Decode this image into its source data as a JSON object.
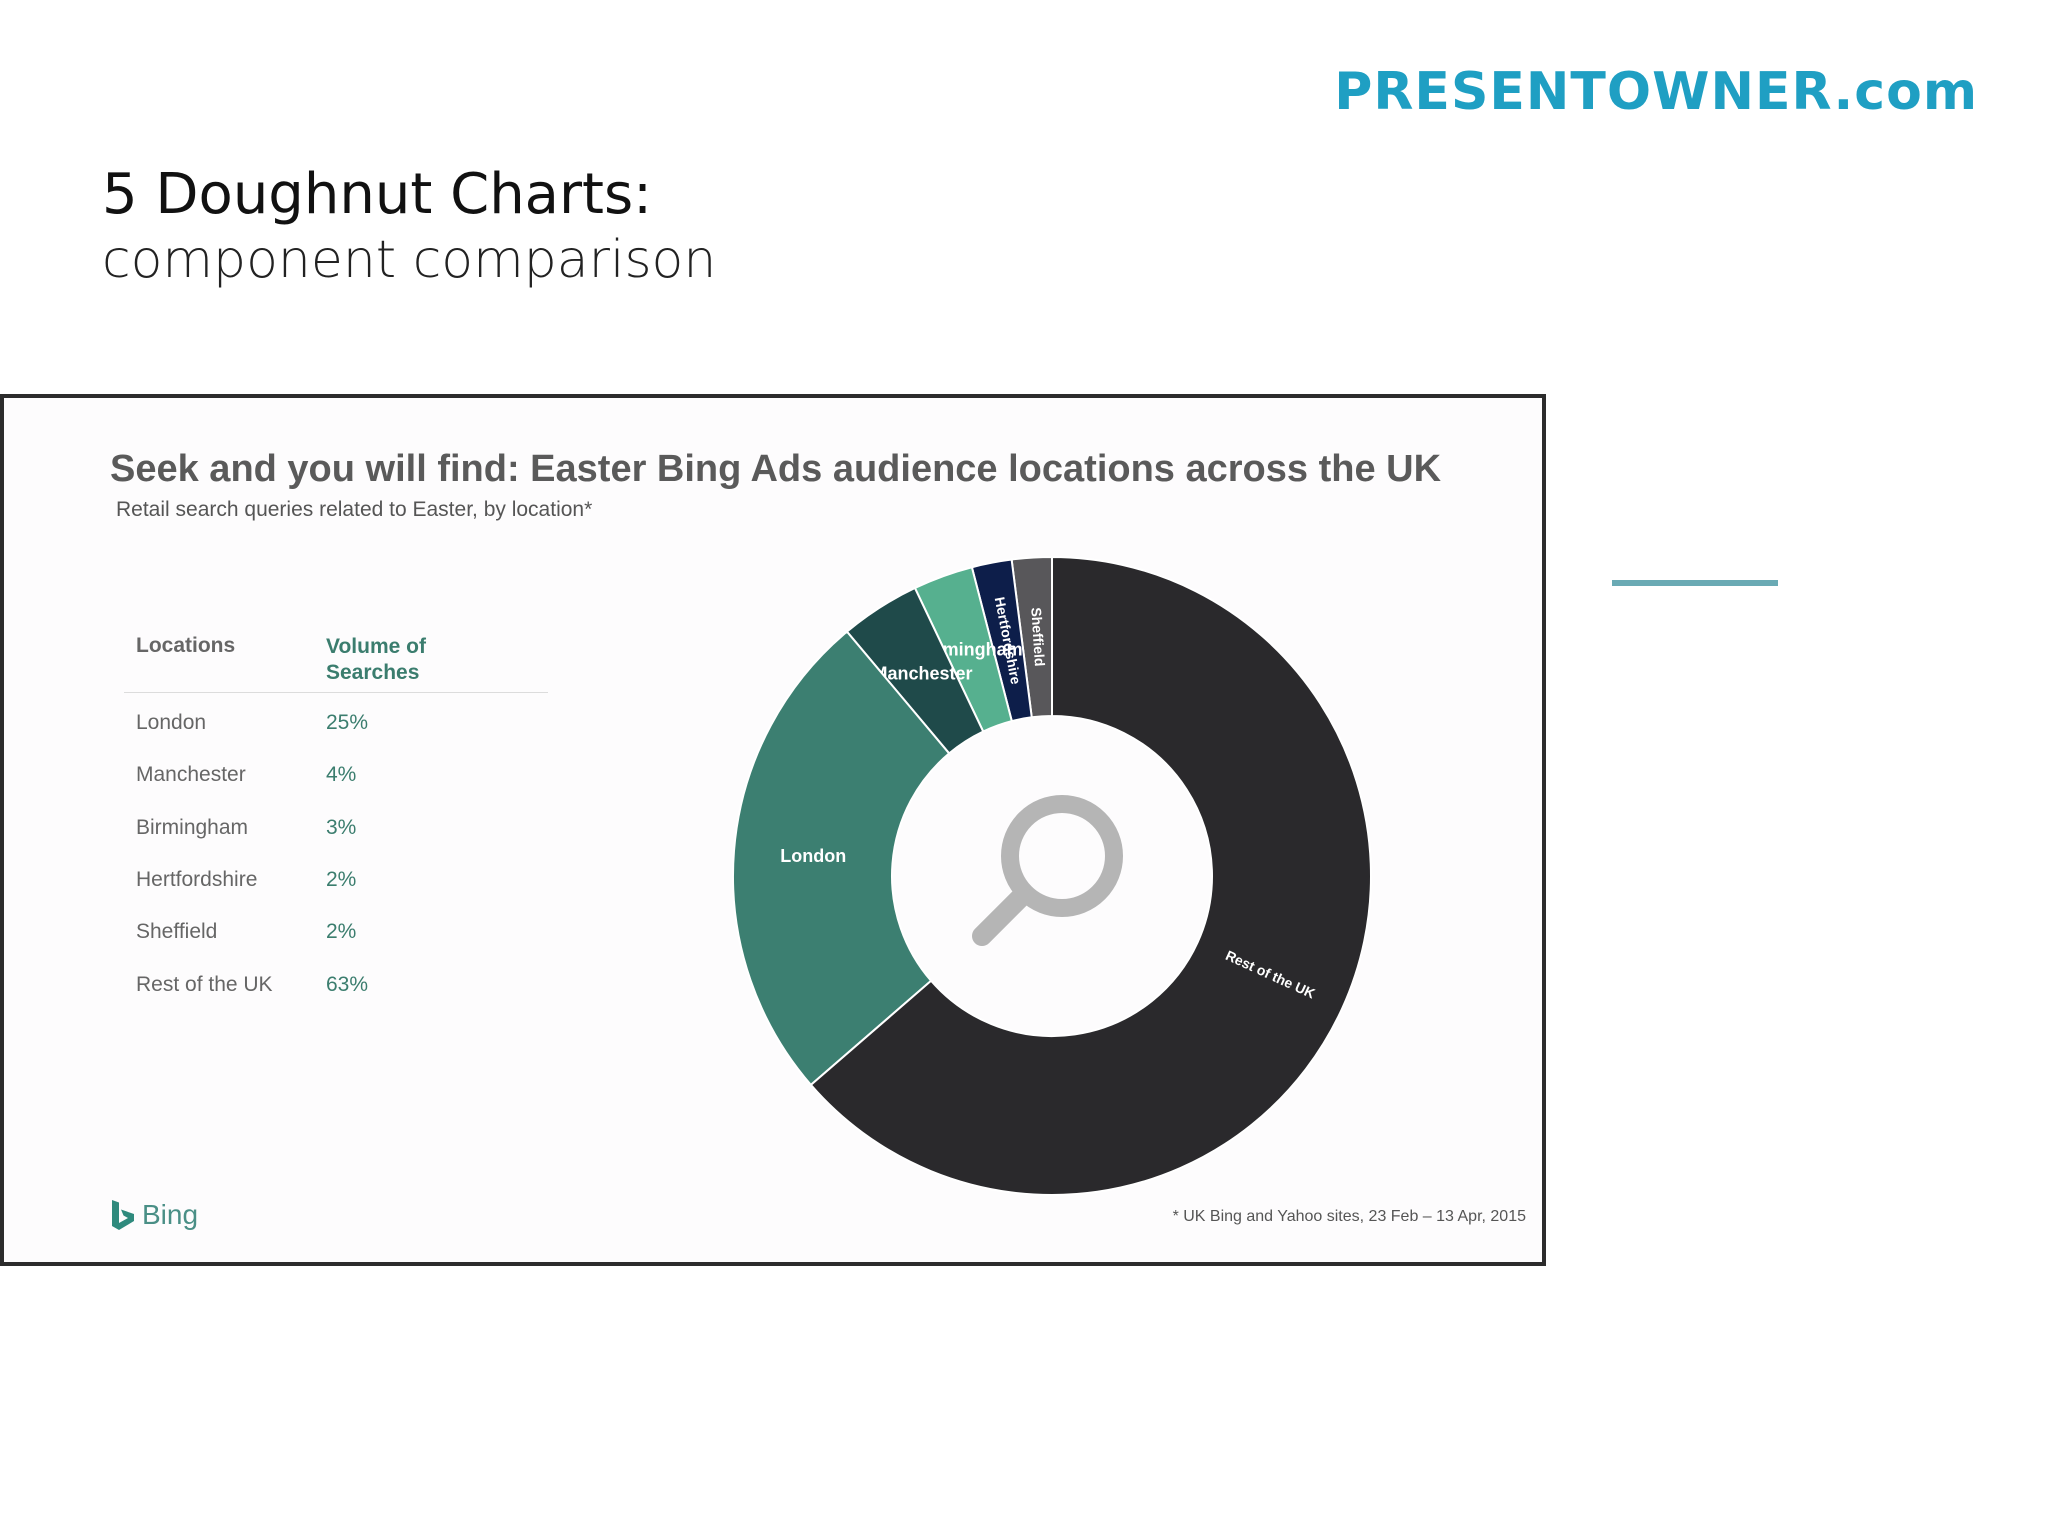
{
  "brand": {
    "text": "PRESENTOWNER.com",
    "color": "#1f9fc3"
  },
  "slide": {
    "title": "5 Doughnut Charts:",
    "subtitle": "component comparison"
  },
  "chart_data": {
    "type": "pie",
    "variant": "doughnut",
    "title": "Seek and you will find: Easter Bing Ads audience locations across the UK",
    "subtitle": "Retail search queries related to Easter, by location*",
    "table_headers": [
      "Locations",
      "Volume of Searches"
    ],
    "slices": [
      {
        "label": "Sheffield",
        "value": 2,
        "display": "2%",
        "color": "#58575a"
      },
      {
        "label": "Hertfordshire",
        "value": 2,
        "display": "2%",
        "color": "#0d1e4a"
      },
      {
        "label": "Birmingham",
        "value": 3,
        "display": "3%",
        "color": "#56b08f"
      },
      {
        "label": "Manchester",
        "value": 4,
        "display": "4%",
        "color": "#1f4a4a"
      },
      {
        "label": "London",
        "value": 25,
        "display": "25%",
        "color": "#3c7f71"
      },
      {
        "label": "Rest of the UK",
        "value": 63,
        "display": "63%",
        "color": "#2a292c"
      }
    ],
    "table_order": [
      "London",
      "Manchester",
      "Birmingham",
      "Hertfordshire",
      "Sheffield",
      "Rest of the UK"
    ],
    "center_icon": "magnifier-icon",
    "legend": "table-left",
    "footnote": "* UK Bing and Yahoo sites, 23 Feb – 13 Apr, 2015",
    "logo_text": "Bing"
  }
}
